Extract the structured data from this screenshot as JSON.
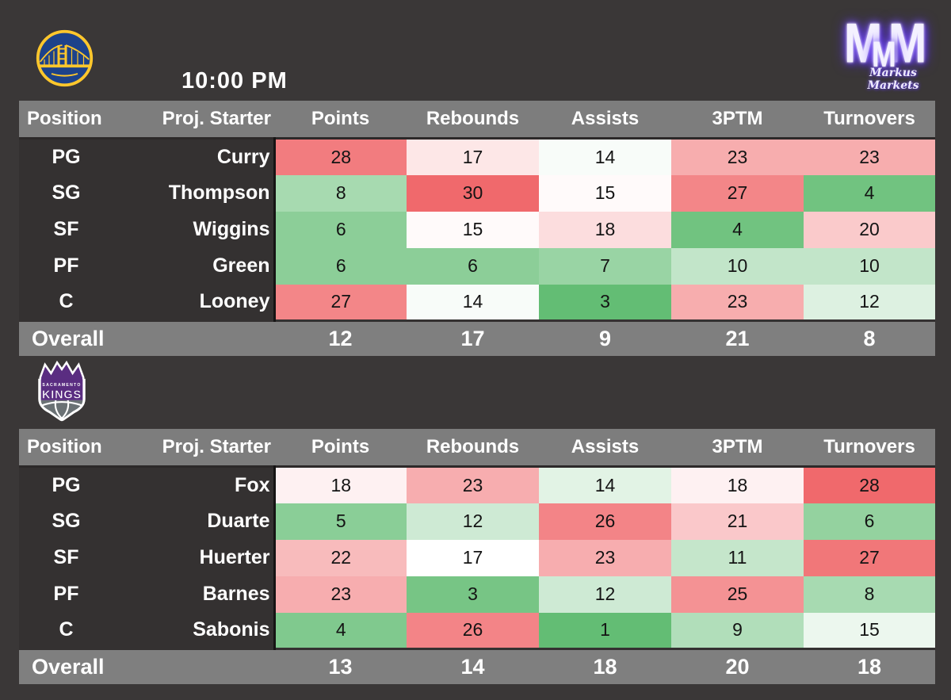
{
  "page": {
    "background": "#3a3737",
    "tipoff_time": "10:00 PM"
  },
  "brand": {
    "m1": "M",
    "m2": "M",
    "m3": "M",
    "name": "Markus Markets"
  },
  "logos": {
    "warriors": "golden-state-warriors",
    "kings": {
      "city_label": "SACRAMENTO",
      "name_label": "KINGS"
    }
  },
  "colors": {
    "page_bg": "#3a3737",
    "header_bg": "#7d7d7d",
    "overall_bg": "#7f7f7f",
    "dark_cell_bg": "#343131",
    "header_text": "#ffffff",
    "value_text": "#141414",
    "scale_low": "#63bd74",
    "scale_mid": "#ffffff",
    "scale_high": "#f0696c",
    "warriors_blue": "#1d428a",
    "warriors_gold": "#ffc72c",
    "kings_purple": "#5a2d81",
    "kings_slate": "#6a7174",
    "neon_purple": "#8f6bff"
  },
  "chart_data": [
    {
      "type": "heatmap",
      "team_id": "warriors",
      "team": "Golden State Warriors",
      "columns": [
        "Position",
        "Proj. Starter",
        "Points",
        "Rebounds",
        "Assists",
        "3PTM",
        "Turnovers"
      ],
      "rows": [
        {
          "position": "PG",
          "starter": "Curry",
          "values": [
            28,
            17,
            14,
            23,
            23
          ]
        },
        {
          "position": "SG",
          "starter": "Thompson",
          "values": [
            8,
            30,
            15,
            27,
            4
          ]
        },
        {
          "position": "SF",
          "starter": "Wiggins",
          "values": [
            6,
            15,
            18,
            4,
            20
          ]
        },
        {
          "position": "PF",
          "starter": "Green",
          "values": [
            6,
            6,
            7,
            10,
            10
          ]
        },
        {
          "position": "C",
          "starter": "Looney",
          "values": [
            27,
            14,
            3,
            23,
            12
          ]
        }
      ],
      "overall_label": "Overall",
      "overall": [
        12,
        17,
        9,
        21,
        8
      ],
      "color_scale": {
        "min": 3,
        "mid": 14.5,
        "max": 30,
        "low_color": "#63bd74",
        "mid_color": "#ffffff",
        "high_color": "#f0696c"
      }
    },
    {
      "type": "heatmap",
      "team_id": "kings",
      "team": "Sacramento Kings",
      "columns": [
        "Position",
        "Proj. Starter",
        "Points",
        "Rebounds",
        "Assists",
        "3PTM",
        "Turnovers"
      ],
      "rows": [
        {
          "position": "PG",
          "starter": "Fox",
          "values": [
            18,
            23,
            14,
            18,
            28
          ]
        },
        {
          "position": "SG",
          "starter": "Duarte",
          "values": [
            5,
            12,
            26,
            21,
            6
          ]
        },
        {
          "position": "SF",
          "starter": "Huerter",
          "values": [
            22,
            17,
            23,
            11,
            27
          ]
        },
        {
          "position": "PF",
          "starter": "Barnes",
          "values": [
            23,
            3,
            12,
            25,
            8
          ]
        },
        {
          "position": "C",
          "starter": "Sabonis",
          "values": [
            4,
            26,
            1,
            9,
            15
          ]
        }
      ],
      "overall_label": "Overall",
      "overall": [
        13,
        14,
        18,
        20,
        18
      ],
      "color_scale": {
        "min": 1,
        "mid": 17,
        "max": 28,
        "low_color": "#63bd74",
        "mid_color": "#ffffff",
        "high_color": "#f0696c"
      }
    }
  ]
}
